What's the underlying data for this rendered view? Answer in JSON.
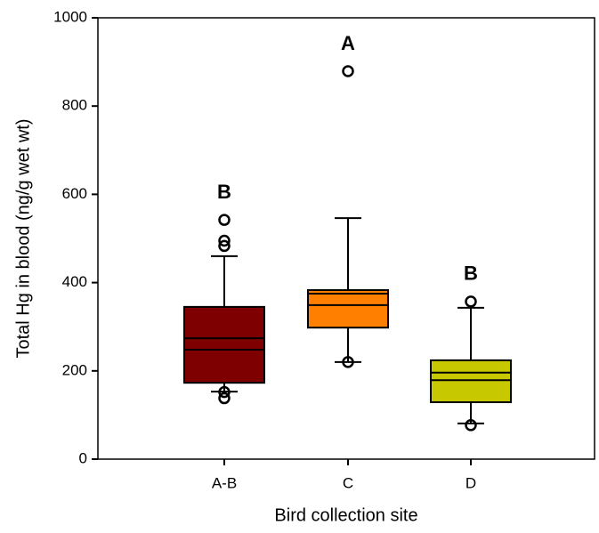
{
  "chart_data": {
    "type": "box",
    "x_label": "Bird collection site",
    "y_label": "Total Hg in blood (ng/g wet wt)",
    "ylim": [
      0,
      1000
    ],
    "yticks": [
      0,
      200,
      400,
      600,
      800,
      1000
    ],
    "categories": [
      "A-B",
      "C",
      "D"
    ],
    "annotations": [
      "B",
      "A",
      "B"
    ],
    "boxes": [
      {
        "color": "#7f0000",
        "whisker_low": 153,
        "q1": 173,
        "median": 248,
        "mean": 274,
        "q3": 345,
        "whisker_high": 460,
        "outliers": [
          542,
          495,
          483,
          152,
          138
        ]
      },
      {
        "color": "#ff8000",
        "whisker_low": 220,
        "q1": 298,
        "median": 349,
        "mean": 375,
        "q3": 383,
        "whisker_high": 546,
        "outliers": [
          879,
          220
        ]
      },
      {
        "color": "#c8c800",
        "whisker_low": 81,
        "q1": 129,
        "median": 179,
        "mean": 196,
        "q3": 224,
        "whisker_high": 343,
        "outliers": [
          357,
          77
        ]
      }
    ]
  }
}
